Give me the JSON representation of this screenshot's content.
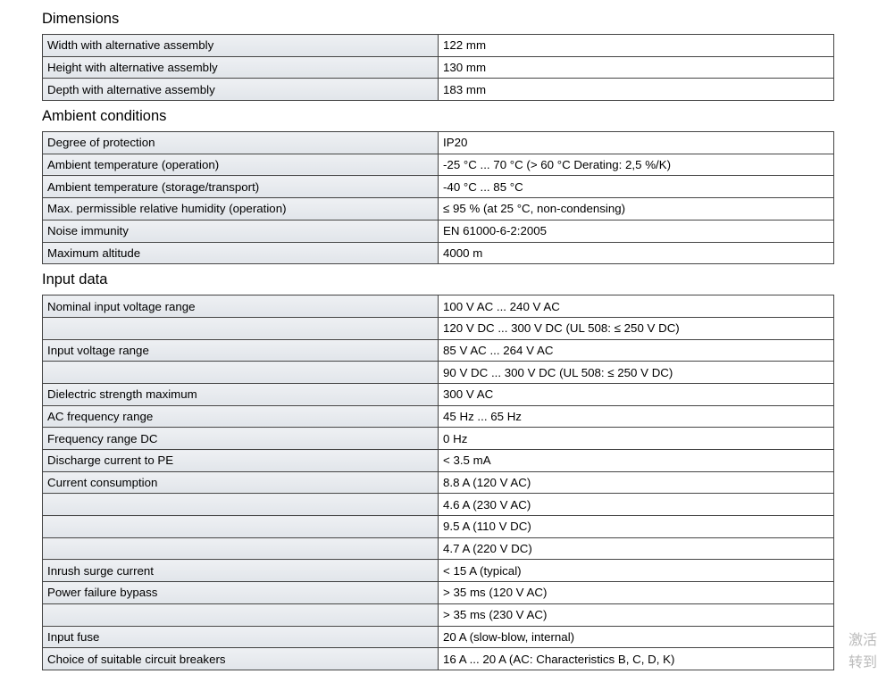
{
  "sections": [
    {
      "title": "Dimensions",
      "rows": [
        {
          "label": "Width with alternative assembly",
          "value": "122 mm"
        },
        {
          "label": "Height with alternative assembly",
          "value": "130 mm"
        },
        {
          "label": "Depth with alternative assembly",
          "value": "183 mm"
        }
      ]
    },
    {
      "title": "Ambient conditions",
      "rows": [
        {
          "label": "Degree of protection",
          "value": "IP20"
        },
        {
          "label": "Ambient temperature (operation)",
          "value": "-25 °C ... 70 °C (> 60 °C Derating: 2,5 %/K)"
        },
        {
          "label": "Ambient temperature (storage/transport)",
          "value": "-40 °C ... 85 °C"
        },
        {
          "label": "Max. permissible relative humidity (operation)",
          "value": "≤ 95 % (at 25 °C, non-condensing)"
        },
        {
          "label": "Noise immunity",
          "value": "EN 61000-6-2:2005"
        },
        {
          "label": "Maximum altitude",
          "value": "4000 m"
        }
      ]
    },
    {
      "title": "Input data",
      "rows": [
        {
          "label": "Nominal input voltage range",
          "value": "100 V AC ... 240 V AC"
        },
        {
          "value": "120 V DC ... 300 V DC (UL 508: ≤ 250 V DC)"
        },
        {
          "label": "Input voltage range",
          "value": "85 V AC ... 264 V AC"
        },
        {
          "value": "90 V DC ... 300 V DC (UL 508: ≤ 250 V DC)"
        },
        {
          "label": "Dielectric strength maximum",
          "value": "300 V AC"
        },
        {
          "label": "AC frequency range",
          "value": "45 Hz ... 65 Hz"
        },
        {
          "label": "Frequency range DC",
          "value": "0 Hz"
        },
        {
          "label": "Discharge current to PE",
          "value": "< 3.5 mA"
        },
        {
          "label": "Current consumption",
          "value": "8.8 A (120 V AC)"
        },
        {
          "value": "4.6 A (230 V AC)"
        },
        {
          "value": "9.5 A (110 V DC)"
        },
        {
          "value": "4.7 A (220 V DC)"
        },
        {
          "label": "Inrush surge current",
          "value": "< 15 A (typical)"
        },
        {
          "label": "Power failure bypass",
          "value": "> 35 ms (120 V AC)"
        },
        {
          "value": "> 35 ms (230 V AC)"
        },
        {
          "label": "Input fuse",
          "value": "20 A (slow-blow, internal)"
        },
        {
          "label": "Choice of suitable circuit breakers",
          "value": "16 A ... 20 A (AC: Characteristics B, C, D, K)"
        }
      ]
    }
  ],
  "watermark": [
    "激活",
    "转到"
  ]
}
